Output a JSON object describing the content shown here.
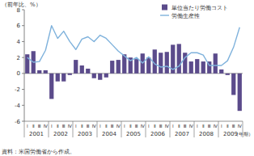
{
  "chart_data": {
    "type": "bar",
    "y_axis_label": "（前年比、%）",
    "x_axis_label": "（年期）",
    "source": "資料：米国労働省から作成。",
    "categories": [
      "Ⅰ",
      "Ⅱ",
      "Ⅲ",
      "Ⅳ",
      "Ⅰ",
      "Ⅱ",
      "Ⅲ",
      "Ⅳ",
      "Ⅰ",
      "Ⅱ",
      "Ⅲ",
      "Ⅳ",
      "Ⅰ",
      "Ⅱ",
      "Ⅲ",
      "Ⅳ",
      "Ⅰ",
      "Ⅱ",
      "Ⅲ",
      "Ⅳ",
      "Ⅰ",
      "Ⅱ",
      "Ⅲ",
      "Ⅳ",
      "Ⅰ",
      "Ⅱ",
      "Ⅲ",
      "Ⅳ",
      "Ⅰ",
      "Ⅱ",
      "Ⅲ",
      "Ⅳ",
      "Ⅰ",
      "Ⅱ",
      "Ⅲ",
      "Ⅳ"
    ],
    "year_labels": [
      "2001",
      "2002",
      "2003",
      "2004",
      "2005",
      "2006",
      "2007",
      "2008",
      "2009"
    ],
    "series": [
      {
        "name": "単位当たり労働コスト",
        "type": "bar",
        "color": "#5b4b8b",
        "values": [
          2.4,
          2.8,
          0.4,
          0.4,
          -3.2,
          -1.0,
          -1.0,
          -0.2,
          1.7,
          1.0,
          0.6,
          -0.6,
          -0.8,
          -0.5,
          1.6,
          1.7,
          2.4,
          2.0,
          1.8,
          2.5,
          2.0,
          3.0,
          2.6,
          2.7,
          3.6,
          3.7,
          2.6,
          1.5,
          1.8,
          1.5,
          1.5,
          2.5,
          0.5,
          -0.2,
          -2.7,
          -4.7
        ]
      },
      {
        "name": "労働生産性",
        "type": "line",
        "color": "#7fb2dc",
        "values": [
          2.0,
          1.4,
          1.5,
          2.9,
          6.0,
          4.4,
          5.3,
          4.0,
          3.0,
          4.3,
          4.6,
          4.0,
          4.8,
          4.4,
          3.6,
          2.8,
          2.2,
          1.6,
          2.0,
          1.3,
          2.1,
          1.2,
          0.8,
          0.9,
          0.5,
          0.9,
          2.0,
          2.6,
          2.6,
          2.3,
          1.0,
          1.0,
          1.0,
          1.6,
          3.3,
          5.8
        ]
      }
    ],
    "ylim": [
      -6,
      8
    ],
    "yticks": [
      -6,
      -4,
      -2,
      0,
      2,
      4,
      6,
      8
    ],
    "grid": false,
    "legend": "top-right"
  }
}
